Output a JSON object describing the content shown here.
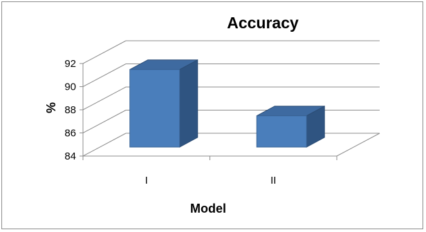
{
  "chart_data": {
    "type": "bar",
    "title": "Accuracy",
    "categories": [
      "I",
      "II"
    ],
    "values": [
      91.6,
      87.6
    ],
    "xlabel": "Model",
    "ylabel": "%",
    "ylim": [
      84,
      92
    ],
    "yticks": [
      "84",
      "86",
      "88",
      "90",
      "92"
    ],
    "grid": true,
    "legend": "none",
    "bar_color": "#4a7ebb"
  }
}
